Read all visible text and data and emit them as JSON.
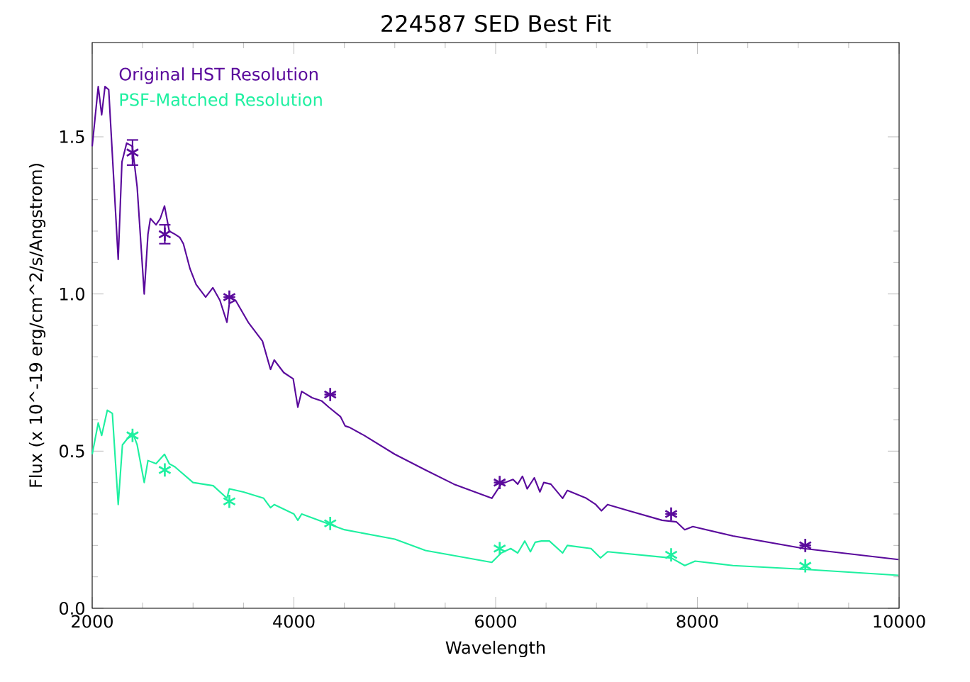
{
  "chart_data": {
    "type": "line",
    "title": "224587 SED Best Fit",
    "xlabel": "Wavelength",
    "ylabel": "Flux (x 10^-19 erg/cm^2/s/Angstrom)",
    "xlim": [
      2000,
      10000
    ],
    "xticks": [
      2000,
      4000,
      6000,
      8000,
      10000
    ],
    "ylim": [
      0,
      1.8
    ],
    "yticks": [
      {
        "value": 0,
        "label": "0.0"
      },
      {
        "value": 0.5,
        "label": "0.5"
      },
      {
        "value": 1.0,
        "label": "1.0"
      },
      {
        "value": 1.5,
        "label": "1.5"
      }
    ],
    "grid": false,
    "legend": "top left",
    "series": [
      {
        "name": "Original HST Resolution",
        "marker": "none",
        "color": "#5a0a9c",
        "x": [
          2000,
          2060,
          2094,
          2127,
          2164,
          2258,
          2295,
          2342,
          2398,
          2446,
          2516,
          2553,
          2577,
          2633,
          2675,
          2717,
          2764,
          2820,
          2868,
          2904,
          2970,
          3031,
          3125,
          3196,
          3266,
          3336,
          3360,
          3421,
          3547,
          3688,
          3768,
          3805,
          3899,
          3993,
          4039,
          4077,
          4180,
          4274,
          4345,
          4461,
          4508,
          4555,
          4696,
          5000,
          5305,
          5586,
          5962,
          6055,
          6172,
          6219,
          6266,
          6313,
          6383,
          6439,
          6477,
          6547,
          6664,
          6711,
          6899,
          6993,
          7049,
          7110,
          7321,
          7650,
          7791,
          7875,
          7955,
          8353,
          9057,
          9993
        ],
        "values": [
          1.47,
          1.66,
          1.57,
          1.66,
          1.65,
          1.11,
          1.42,
          1.48,
          1.47,
          1.34,
          1.0,
          1.19,
          1.24,
          1.22,
          1.24,
          1.28,
          1.2,
          1.19,
          1.18,
          1.16,
          1.08,
          1.03,
          0.99,
          1.02,
          0.98,
          0.91,
          0.97,
          0.98,
          0.91,
          0.85,
          0.76,
          0.79,
          0.75,
          0.73,
          0.64,
          0.69,
          0.67,
          0.66,
          0.64,
          0.61,
          0.58,
          0.575,
          0.55,
          0.49,
          0.44,
          0.395,
          0.35,
          0.395,
          0.41,
          0.395,
          0.42,
          0.38,
          0.415,
          0.37,
          0.4,
          0.395,
          0.35,
          0.375,
          0.35,
          0.33,
          0.31,
          0.33,
          0.31,
          0.28,
          0.275,
          0.25,
          0.26,
          0.23,
          0.19,
          0.155
        ]
      },
      {
        "name": "PSF-Matched Resolution",
        "marker": "none",
        "color": "#1ef0a0",
        "x": [
          2000,
          2060,
          2094,
          2150,
          2200,
          2258,
          2300,
          2400,
          2446,
          2516,
          2553,
          2633,
          2717,
          2764,
          2820,
          3000,
          3200,
          3336,
          3360,
          3500,
          3700,
          3768,
          3805,
          4000,
          4039,
          4077,
          4500,
          5000,
          5305,
          5962,
          6055,
          6149,
          6219,
          6289,
          6345,
          6392,
          6454,
          6533,
          6664,
          6711,
          6946,
          7040,
          7110,
          7743,
          7875,
          7978,
          8353,
          9057,
          9993
        ],
        "values": [
          0.49,
          0.59,
          0.55,
          0.63,
          0.62,
          0.33,
          0.52,
          0.56,
          0.52,
          0.4,
          0.47,
          0.46,
          0.49,
          0.46,
          0.45,
          0.4,
          0.39,
          0.35,
          0.38,
          0.37,
          0.35,
          0.32,
          0.33,
          0.3,
          0.28,
          0.3,
          0.25,
          0.22,
          0.184,
          0.146,
          0.176,
          0.19,
          0.176,
          0.214,
          0.18,
          0.21,
          0.214,
          0.214,
          0.176,
          0.2,
          0.19,
          0.16,
          0.18,
          0.16,
          0.136,
          0.15,
          0.136,
          0.124,
          0.105
        ]
      },
      {
        "type": "scatter",
        "marker": "cross",
        "color": "#5a0a9c",
        "x": [
          2400,
          2720,
          3360,
          4360,
          6040,
          7740,
          9070
        ],
        "values": [
          1.45,
          1.19,
          0.99,
          0.68,
          0.4,
          0.3,
          0.2
        ],
        "errors": [
          0.04,
          0.03,
          null,
          null,
          null,
          null,
          null
        ]
      },
      {
        "type": "scatter",
        "marker": "cross",
        "color": "#1ef0a0",
        "x": [
          2400,
          2720,
          3360,
          4360,
          6040,
          7740,
          9070
        ],
        "values": [
          0.55,
          0.44,
          0.34,
          0.27,
          0.19,
          0.17,
          0.135
        ]
      }
    ]
  }
}
